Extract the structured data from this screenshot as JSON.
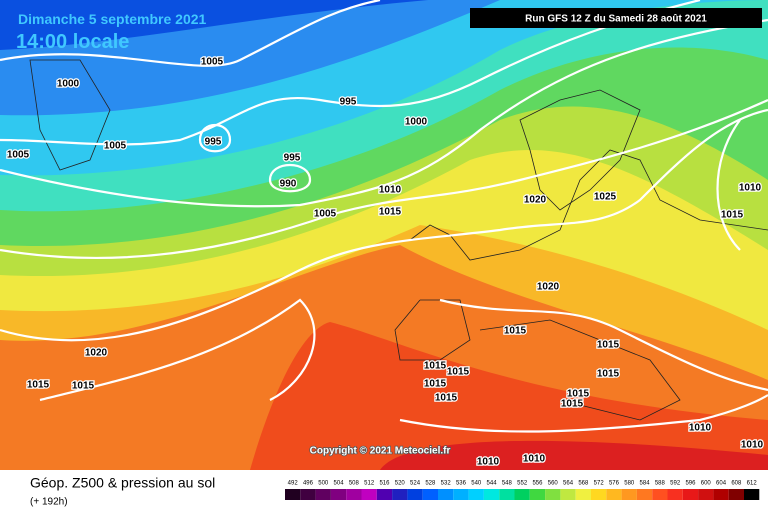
{
  "header": {
    "title": "Dimanche 5 septembre 2021",
    "time": "14:00 locale",
    "run": "Run GFS 12 Z du Samedi 28 août 2021"
  },
  "isobars": [
    1000,
    1005,
    995,
    1000,
    995,
    1005,
    1005,
    995,
    990,
    1010,
    1015,
    1005,
    1020,
    1025,
    1010,
    1015,
    1020,
    1015,
    1015,
    1020,
    1015,
    1015,
    1015,
    1015,
    1015,
    1015,
    1015,
    1015,
    1015,
    1010,
    1010,
    1010,
    1010
  ],
  "copyright": "Copyright © 2021 Meteociel.fr",
  "legend": {
    "title": "Géop. Z500 & pression au sol",
    "lead": "(+ 192h)",
    "scale": [
      492,
      496,
      500,
      504,
      508,
      512,
      516,
      520,
      524,
      528,
      532,
      536,
      540,
      544,
      548,
      552,
      556,
      560,
      564,
      568,
      572,
      576,
      580,
      584,
      588,
      592,
      596,
      600,
      604,
      608,
      612
    ],
    "colors": [
      "#200020",
      "#400040",
      "#600060",
      "#800080",
      "#a000a0",
      "#c000c0",
      "#5000b0",
      "#2020c0",
      "#0040e0",
      "#0060ff",
      "#0090ff",
      "#00b0ff",
      "#00d0ff",
      "#00e8e0",
      "#00e0a0",
      "#00d060",
      "#40d840",
      "#80e040",
      "#c0e840",
      "#f0f040",
      "#ffd820",
      "#ffb820",
      "#ff9820",
      "#ff7820",
      "#ff5020",
      "#f83020",
      "#e81818",
      "#d01010",
      "#b00000",
      "#800000",
      "#000000"
    ]
  }
}
